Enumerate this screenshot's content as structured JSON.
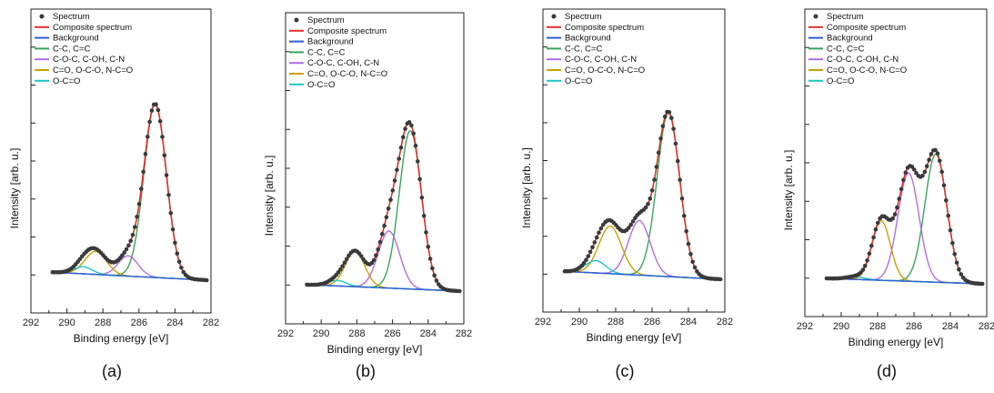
{
  "chart_data": [
    {
      "type": "line",
      "panel_label": "(a)",
      "xlabel": "Binding energy [eV]",
      "ylabel": "Intensity [arb. u.]",
      "xlim": [
        292,
        282
      ],
      "x_reversed": true,
      "ylim": [
        0,
        1.1
      ],
      "xticks": [
        292,
        290,
        288,
        286,
        284,
        282
      ],
      "y_tick_labels_shown": false,
      "legend": "top-left",
      "components": [
        {
          "name": "C-C, C=C",
          "color": "#3aa35a",
          "center": 285.1,
          "height": 0.98,
          "sigma": 0.62
        },
        {
          "name": "C-O-C, C-OH, C-N",
          "color": "#b06ee6",
          "center": 286.6,
          "height": 0.115,
          "sigma": 0.55
        },
        {
          "name": "C=O, O-C-O, N-C=O",
          "color": "#c9a000",
          "center": 288.4,
          "height": 0.13,
          "sigma": 0.6
        },
        {
          "name": "O-C=O",
          "color": "#1fc6c6",
          "center": 289.1,
          "height": 0.04,
          "sigma": 0.5
        }
      ],
      "background": {
        "name": "Background",
        "color": "#2a5fd4",
        "start_x": 290.8,
        "end_x": 282.2,
        "start_y": 0.045,
        "end_y": 0.0
      },
      "spectrum_series": {
        "name": "Spectrum",
        "color": "#3a3a3a",
        "marker": "circle"
      },
      "composite_series": {
        "name": "Composite spectrum",
        "color": "#e0302a"
      },
      "x_range": [
        290.8,
        282.2
      ]
    },
    {
      "type": "line",
      "panel_label": "(b)",
      "xlabel": "Binding energy [eV]",
      "ylabel": "Intensity [arb. u.]",
      "xlim": [
        292,
        282
      ],
      "x_reversed": true,
      "ylim": [
        0,
        1.1
      ],
      "xticks": [
        292,
        290,
        288,
        286,
        284,
        282
      ],
      "y_tick_labels_shown": false,
      "legend": "top-left",
      "components": [
        {
          "name": "C-C, C=C",
          "color": "#3aa35a",
          "center": 285.0,
          "height": 0.86,
          "sigma": 0.62
        },
        {
          "name": "C-O-C, C-OH, C-N",
          "color": "#b06ee6",
          "center": 286.2,
          "height": 0.31,
          "sigma": 0.6
        },
        {
          "name": "C=O, O-C-O, N-C=O",
          "color": "#c9a000",
          "center": 288.1,
          "height": 0.19,
          "sigma": 0.55
        },
        {
          "name": "O-C=O",
          "color": "#1fc6c6",
          "center": 289.1,
          "height": 0.03,
          "sigma": 0.5
        }
      ],
      "background": {
        "name": "Background",
        "color": "#2a5fd4",
        "start_x": 290.8,
        "end_x": 282.2,
        "start_y": 0.035,
        "end_y": 0.0
      },
      "spectrum_series": {
        "name": "Spectrum",
        "color": "#3a3a3a",
        "marker": "circle"
      },
      "composite_series": {
        "name": "Composite spectrum",
        "color": "#e0302a"
      },
      "x_range": [
        290.8,
        282.2
      ]
    },
    {
      "type": "line",
      "panel_label": "(c)",
      "xlabel": "Binding energy [eV]",
      "ylabel": "Intensity [arb. u.]",
      "xlim": [
        292,
        282
      ],
      "x_reversed": true,
      "ylim": [
        0,
        1.1
      ],
      "xticks": [
        292,
        290,
        288,
        286,
        284,
        282
      ],
      "y_tick_labels_shown": false,
      "legend": "top-left",
      "components": [
        {
          "name": "C-C, C=C",
          "color": "#3aa35a",
          "center": 285.1,
          "height": 0.93,
          "sigma": 0.62
        },
        {
          "name": "C-O-C, C-OH, C-N",
          "color": "#b06ee6",
          "center": 286.7,
          "height": 0.31,
          "sigma": 0.6
        },
        {
          "name": "C=O, O-C-O, N-C=O",
          "color": "#c9a000",
          "center": 288.3,
          "height": 0.27,
          "sigma": 0.62
        },
        {
          "name": "O-C=O",
          "color": "#1fc6c6",
          "center": 289.1,
          "height": 0.07,
          "sigma": 0.55
        }
      ],
      "background": {
        "name": "Background",
        "color": "#2a5fd4",
        "start_x": 290.8,
        "end_x": 282.2,
        "start_y": 0.045,
        "end_y": 0.0
      },
      "spectrum_series": {
        "name": "Spectrum",
        "color": "#3a3a3a",
        "marker": "circle"
      },
      "composite_series": {
        "name": "Composite spectrum",
        "color": "#e0302a"
      },
      "x_range": [
        290.8,
        282.2
      ]
    },
    {
      "type": "line",
      "panel_label": "(d)",
      "xlabel": "Binding energy [eV]",
      "ylabel": "Intensity [arb. u.]",
      "xlim": [
        292,
        282
      ],
      "x_reversed": true,
      "ylim": [
        0,
        1.1
      ],
      "xticks": [
        292,
        290,
        288,
        286,
        284,
        282
      ],
      "y_tick_labels_shown": false,
      "legend": "top-left",
      "components": [
        {
          "name": "C-C, C=C",
          "color": "#3aa35a",
          "center": 284.8,
          "height": 0.71,
          "sigma": 0.6
        },
        {
          "name": "C-O-C, C-OH, C-N",
          "color": "#b06ee6",
          "center": 286.3,
          "height": 0.6,
          "sigma": 0.58
        },
        {
          "name": "C=O, O-C-O, N-C=O",
          "color": "#c9a000",
          "center": 287.8,
          "height": 0.33,
          "sigma": 0.5
        },
        {
          "name": "O-C=O",
          "color": "#1fc6c6",
          "center": 289.2,
          "height": 0.015,
          "sigma": 0.5
        }
      ],
      "background": {
        "name": "Background",
        "color": "#2a5fd4",
        "start_x": 290.8,
        "end_x": 282.2,
        "start_y": 0.03,
        "end_y": 0.0
      },
      "spectrum_series": {
        "name": "Spectrum",
        "color": "#3a3a3a",
        "marker": "circle"
      },
      "composite_series": {
        "name": "Composite spectrum",
        "color": "#e0302a"
      },
      "x_range": [
        290.8,
        282.2
      ]
    }
  ]
}
